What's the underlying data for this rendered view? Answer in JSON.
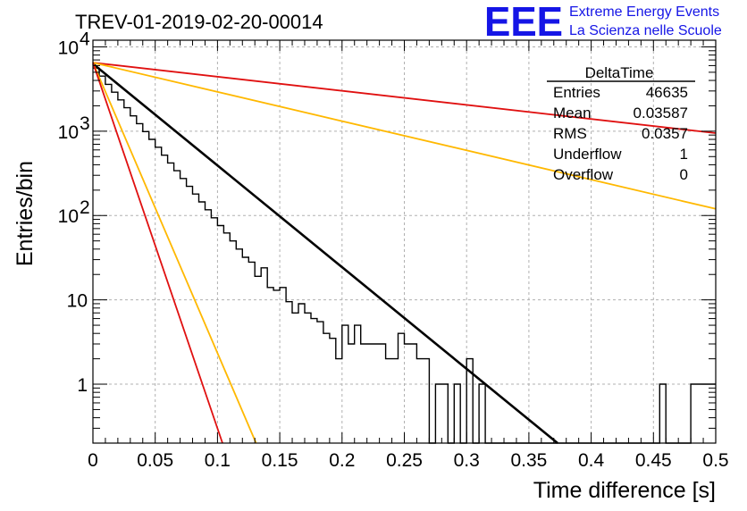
{
  "header": {
    "run_title": "TREV-01-2019-02-20-00014",
    "logo_letters": "EEE",
    "logo_line1": "Extreme Energy Events",
    "logo_line2": "La Scienza nelle Scuole"
  },
  "stats": {
    "name": "DeltaTime",
    "rows": [
      {
        "label": "Entries",
        "value": "46635"
      },
      {
        "label": "Mean",
        "value": "0.03587"
      },
      {
        "label": "RMS",
        "value": "0.0357"
      },
      {
        "label": "Underflow",
        "value": "1"
      },
      {
        "label": "Overflow",
        "value": "0"
      }
    ]
  },
  "colors": {
    "histogram": "#000000",
    "fit_black": "#000000",
    "red": "#e01010",
    "orange": "#ffb800",
    "grid": "#b0b0b0"
  },
  "chart_data": {
    "type": "histogram",
    "title": "",
    "xlabel": "Time difference [s]",
    "ylabel": "Entries/bin",
    "xlim": [
      0,
      0.5
    ],
    "ylim": [
      0.2,
      12000
    ],
    "yscale": "log",
    "grid": true,
    "x_ticks": [
      {
        "v": 0,
        "label": "0"
      },
      {
        "v": 0.05,
        "label": "0.05"
      },
      {
        "v": 0.1,
        "label": "0.1"
      },
      {
        "v": 0.15,
        "label": "0.15"
      },
      {
        "v": 0.2,
        "label": "0.2"
      },
      {
        "v": 0.25,
        "label": "0.25"
      },
      {
        "v": 0.3,
        "label": "0.3"
      },
      {
        "v": 0.35,
        "label": "0.35"
      },
      {
        "v": 0.4,
        "label": "0.4"
      },
      {
        "v": 0.45,
        "label": "0.45"
      },
      {
        "v": 0.5,
        "label": "0.5"
      }
    ],
    "y_ticks": [
      {
        "v": 1,
        "base": "1",
        "exp": ""
      },
      {
        "v": 10,
        "base": "10",
        "exp": ""
      },
      {
        "v": 100,
        "base": "10",
        "exp": "2"
      },
      {
        "v": 1000,
        "base": "10",
        "exp": "3"
      },
      {
        "v": 10000,
        "base": "10",
        "exp": "4"
      }
    ],
    "histogram": {
      "bin_width": 0.005,
      "counts": [
        5600,
        4500,
        3600,
        2900,
        2350,
        1900,
        1520,
        1230,
        990,
        800,
        645,
        520,
        420,
        340,
        275,
        222,
        180,
        145,
        117,
        94,
        76,
        62,
        50,
        40,
        32,
        28,
        19,
        24,
        14,
        13,
        14,
        9.5,
        7,
        9,
        7,
        6,
        5.5,
        4,
        3.5,
        2,
        5,
        3,
        5,
        3,
        3,
        3,
        3,
        2,
        2,
        4,
        3,
        3,
        2,
        2,
        0,
        1,
        1,
        0,
        1,
        0,
        2,
        0,
        1,
        0,
        0,
        0,
        0,
        0,
        0,
        0,
        0,
        0,
        0,
        0,
        0,
        0,
        0,
        0,
        0,
        0,
        0,
        0,
        0,
        0,
        0,
        0,
        0,
        0,
        0,
        0,
        0,
        1,
        0,
        0,
        0,
        0,
        1,
        1,
        1,
        1
      ]
    },
    "series": [
      {
        "color": "#000000",
        "x": [
          0,
          0.373
        ],
        "y": [
          6300,
          0.2
        ]
      },
      {
        "color": "#e01010",
        "x": [
          0,
          0.5
        ],
        "y": [
          6500,
          950
        ]
      },
      {
        "color": "#ffb800",
        "x": [
          0,
          0.5
        ],
        "y": [
          6500,
          120
        ]
      },
      {
        "color": "#ffb800",
        "x": [
          0,
          0.131
        ],
        "y": [
          6500,
          0.2
        ]
      },
      {
        "color": "#e01010",
        "x": [
          0,
          0.104
        ],
        "y": [
          6500,
          0.2
        ]
      }
    ]
  }
}
